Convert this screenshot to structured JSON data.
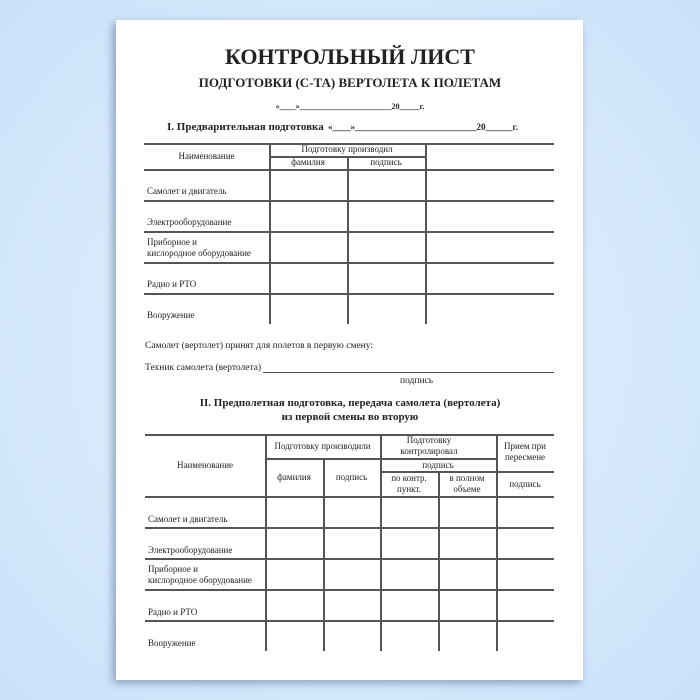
{
  "title": "КОНТРОЛЬНЫЙ ЛИСТ",
  "subtitle": "ПОДГОТОВКИ (С-ТА) ВЕРТОЛЕТА К ПОЛЕТАМ",
  "date_line": "«____»_______________________20_____г.",
  "section1": {
    "heading": "I. Предварительная подготовка",
    "date": "«____»___________________________20______г.",
    "headers": {
      "name": "Наименование",
      "group": "Подготовку производил",
      "surname": "фамилия",
      "signature": "подпись"
    },
    "rows": [
      "Самолет и двигатель",
      "Электрооборудование",
      "Приборное и\nкислородное оборудование",
      "Радио и РТО",
      "Вооружение"
    ]
  },
  "acceptance": {
    "text": "Самолет (вертолет) принят для полетов в первую смену:",
    "technician": "Техник самолета (вертолета)",
    "signature_caption": "подпись"
  },
  "section2": {
    "heading_line1": "II. Предполетная подготовка, передача самолета (вертолета)",
    "heading_line2": "из первой смены во вторую",
    "headers": {
      "name": "Наименование",
      "performed": "Подготовку производили",
      "surname": "фамилия",
      "signature": "подпись",
      "controlled": "Подготовку контролировал",
      "controlled_signature": "подпись",
      "by_points": "по контр. пункт.",
      "full": "в полном объеме",
      "handover": "Прием при пересмене",
      "handover_signature": "подпись"
    },
    "rows": [
      "Самолет и двигатель",
      "Электрооборудование",
      "Приборное и\nкислородное оборудование",
      "Радио и РТО",
      "Вооружение"
    ]
  }
}
